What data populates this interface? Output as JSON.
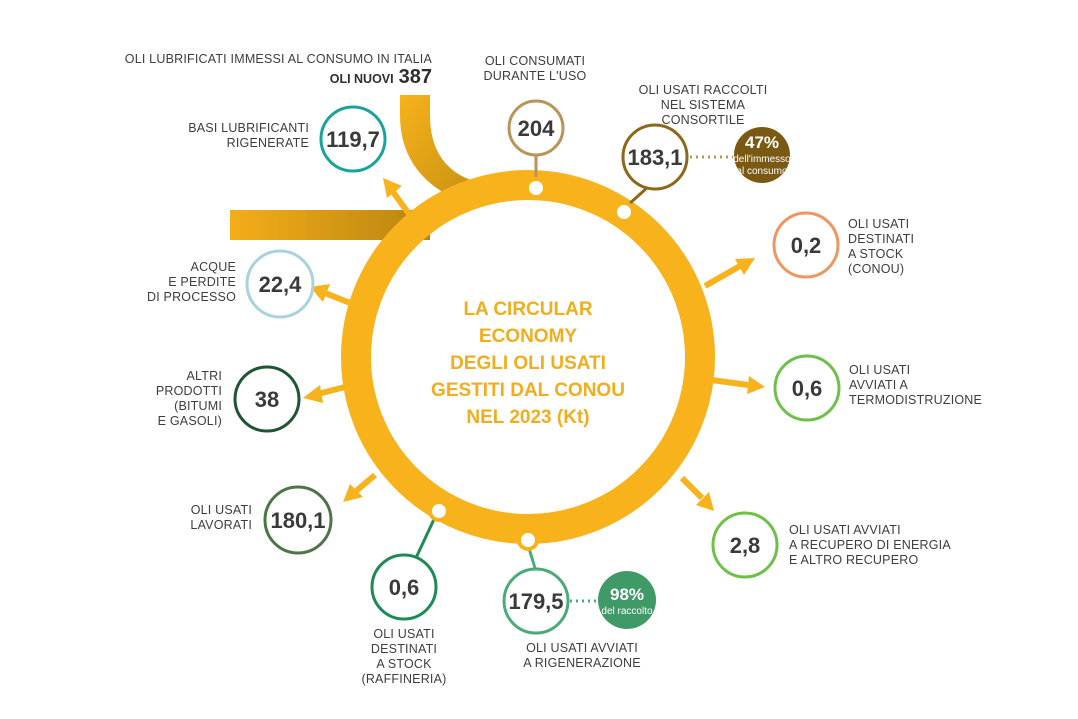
{
  "center_title": [
    "LA CIRCULAR",
    "ECONOMY",
    "DEGLI OLI USATI",
    "GESTITI DAL CONOU",
    "NEL 2023 (Kt)"
  ],
  "input": {
    "label": "OLI LUBRIFICATI IMMESSI AL CONSUMO IN ITALIA",
    "sublabel": "OLI NUOVI",
    "value": "387"
  },
  "nodes": {
    "basi": {
      "value": "119,7",
      "label": [
        "BASI LUBRIFICANTI",
        "RIGENERATE"
      ],
      "color": "#1aa39a"
    },
    "consumati": {
      "value": "204",
      "label": [
        "OLI CONSUMATI",
        "DURANTE L'USO"
      ],
      "color": "#b99458"
    },
    "raccolti": {
      "value": "183,1",
      "label": [
        "OLI USATI RACCOLTI",
        "NEL SISTEMA",
        "CONSORTILE"
      ],
      "color": "#8a6a1a"
    },
    "acque": {
      "value": "22,4",
      "label": [
        "ACQUE",
        "E PERDITE",
        "DI PROCESSO"
      ],
      "color": "#a9d3dc"
    },
    "stock_conou": {
      "value": "0,2",
      "label": [
        "OLI USATI",
        "DESTINATI",
        "A STOCK",
        "(CONOU)"
      ],
      "color": "#ef9560"
    },
    "altri": {
      "value": "38",
      "label": [
        "ALTRI",
        "PRODOTTI",
        "(BITUMI",
        "E GASOLI)"
      ],
      "color": "#1f5631"
    },
    "termo": {
      "value": "0,6",
      "label": [
        "OLI USATI",
        "AVVIATI A",
        "TERMODISTRUZIONE"
      ],
      "color": "#6fbf4a"
    },
    "lavorati": {
      "value": "180,1",
      "label": [
        "OLI USATI",
        "LAVORATI"
      ],
      "color": "#4d7547"
    },
    "energia": {
      "value": "2,8",
      "label": [
        "OLI USATI AVVIATI",
        "A RECUPERO DI ENERGIA",
        "E ALTRO RECUPERO"
      ],
      "color": "#6fbf4a"
    },
    "stock_raff": {
      "value": "0,6",
      "label": [
        "OLI USATI",
        "DESTINATI",
        "A STOCK",
        "(RAFFINERIA)"
      ],
      "color": "#1e8a56"
    },
    "rigenerazione": {
      "value": "179,5",
      "label": [
        "OLI USATI AVVIATI",
        "A RIGENERAZIONE"
      ],
      "color": "#4caa78"
    }
  },
  "badges": {
    "immesso": {
      "pct": "47%",
      "text": [
        "dell'immesso",
        "al consumo"
      ],
      "color": "#7a5a12"
    },
    "raccolto": {
      "pct": "98%",
      "text": [
        "del raccolto"
      ],
      "color": "#3f9a68"
    }
  },
  "colors": {
    "ring": "#f7b21c",
    "ring_dark": "#c48f10"
  }
}
